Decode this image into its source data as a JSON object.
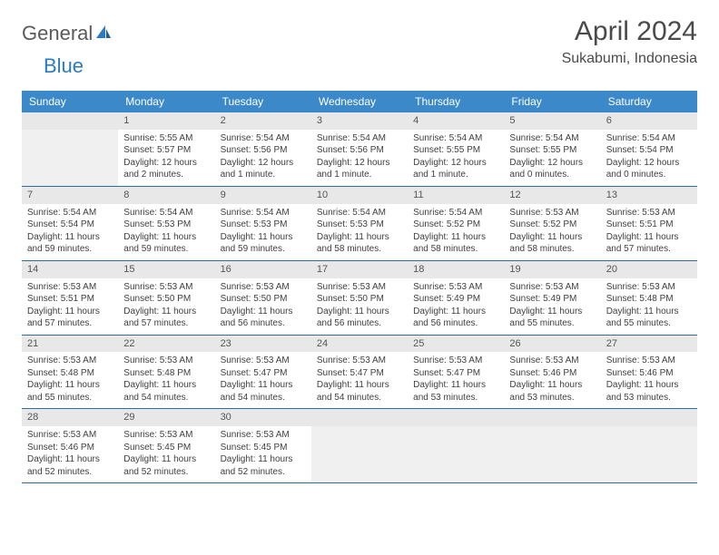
{
  "logo": {
    "general": "General",
    "blue": "Blue"
  },
  "title": "April 2024",
  "location": "Sukabumi, Indonesia",
  "colors": {
    "header_bg": "#3b89c9",
    "header_text": "#ffffff",
    "daynum_bg": "#e8e8e8",
    "daynum_text": "#555555",
    "cell_border": "#2e6da4",
    "empty_bg": "#f0f0f0",
    "body_text": "#404040",
    "logo_gray": "#5a5a5a",
    "logo_blue": "#2b7bbf"
  },
  "typography": {
    "title_fontsize": 30,
    "location_fontsize": 16,
    "dayheader_fontsize": 12,
    "daynum_fontsize": 11,
    "cell_fontsize": 10
  },
  "day_names": [
    "Sunday",
    "Monday",
    "Tuesday",
    "Wednesday",
    "Thursday",
    "Friday",
    "Saturday"
  ],
  "weeks": [
    [
      null,
      {
        "n": "1",
        "sr": "Sunrise: 5:55 AM",
        "ss": "Sunset: 5:57 PM",
        "dl": "Daylight: 12 hours and 2 minutes."
      },
      {
        "n": "2",
        "sr": "Sunrise: 5:54 AM",
        "ss": "Sunset: 5:56 PM",
        "dl": "Daylight: 12 hours and 1 minute."
      },
      {
        "n": "3",
        "sr": "Sunrise: 5:54 AM",
        "ss": "Sunset: 5:56 PM",
        "dl": "Daylight: 12 hours and 1 minute."
      },
      {
        "n": "4",
        "sr": "Sunrise: 5:54 AM",
        "ss": "Sunset: 5:55 PM",
        "dl": "Daylight: 12 hours and 1 minute."
      },
      {
        "n": "5",
        "sr": "Sunrise: 5:54 AM",
        "ss": "Sunset: 5:55 PM",
        "dl": "Daylight: 12 hours and 0 minutes."
      },
      {
        "n": "6",
        "sr": "Sunrise: 5:54 AM",
        "ss": "Sunset: 5:54 PM",
        "dl": "Daylight: 12 hours and 0 minutes."
      }
    ],
    [
      {
        "n": "7",
        "sr": "Sunrise: 5:54 AM",
        "ss": "Sunset: 5:54 PM",
        "dl": "Daylight: 11 hours and 59 minutes."
      },
      {
        "n": "8",
        "sr": "Sunrise: 5:54 AM",
        "ss": "Sunset: 5:53 PM",
        "dl": "Daylight: 11 hours and 59 minutes."
      },
      {
        "n": "9",
        "sr": "Sunrise: 5:54 AM",
        "ss": "Sunset: 5:53 PM",
        "dl": "Daylight: 11 hours and 59 minutes."
      },
      {
        "n": "10",
        "sr": "Sunrise: 5:54 AM",
        "ss": "Sunset: 5:53 PM",
        "dl": "Daylight: 11 hours and 58 minutes."
      },
      {
        "n": "11",
        "sr": "Sunrise: 5:54 AM",
        "ss": "Sunset: 5:52 PM",
        "dl": "Daylight: 11 hours and 58 minutes."
      },
      {
        "n": "12",
        "sr": "Sunrise: 5:53 AM",
        "ss": "Sunset: 5:52 PM",
        "dl": "Daylight: 11 hours and 58 minutes."
      },
      {
        "n": "13",
        "sr": "Sunrise: 5:53 AM",
        "ss": "Sunset: 5:51 PM",
        "dl": "Daylight: 11 hours and 57 minutes."
      }
    ],
    [
      {
        "n": "14",
        "sr": "Sunrise: 5:53 AM",
        "ss": "Sunset: 5:51 PM",
        "dl": "Daylight: 11 hours and 57 minutes."
      },
      {
        "n": "15",
        "sr": "Sunrise: 5:53 AM",
        "ss": "Sunset: 5:50 PM",
        "dl": "Daylight: 11 hours and 57 minutes."
      },
      {
        "n": "16",
        "sr": "Sunrise: 5:53 AM",
        "ss": "Sunset: 5:50 PM",
        "dl": "Daylight: 11 hours and 56 minutes."
      },
      {
        "n": "17",
        "sr": "Sunrise: 5:53 AM",
        "ss": "Sunset: 5:50 PM",
        "dl": "Daylight: 11 hours and 56 minutes."
      },
      {
        "n": "18",
        "sr": "Sunrise: 5:53 AM",
        "ss": "Sunset: 5:49 PM",
        "dl": "Daylight: 11 hours and 56 minutes."
      },
      {
        "n": "19",
        "sr": "Sunrise: 5:53 AM",
        "ss": "Sunset: 5:49 PM",
        "dl": "Daylight: 11 hours and 55 minutes."
      },
      {
        "n": "20",
        "sr": "Sunrise: 5:53 AM",
        "ss": "Sunset: 5:48 PM",
        "dl": "Daylight: 11 hours and 55 minutes."
      }
    ],
    [
      {
        "n": "21",
        "sr": "Sunrise: 5:53 AM",
        "ss": "Sunset: 5:48 PM",
        "dl": "Daylight: 11 hours and 55 minutes."
      },
      {
        "n": "22",
        "sr": "Sunrise: 5:53 AM",
        "ss": "Sunset: 5:48 PM",
        "dl": "Daylight: 11 hours and 54 minutes."
      },
      {
        "n": "23",
        "sr": "Sunrise: 5:53 AM",
        "ss": "Sunset: 5:47 PM",
        "dl": "Daylight: 11 hours and 54 minutes."
      },
      {
        "n": "24",
        "sr": "Sunrise: 5:53 AM",
        "ss": "Sunset: 5:47 PM",
        "dl": "Daylight: 11 hours and 54 minutes."
      },
      {
        "n": "25",
        "sr": "Sunrise: 5:53 AM",
        "ss": "Sunset: 5:47 PM",
        "dl": "Daylight: 11 hours and 53 minutes."
      },
      {
        "n": "26",
        "sr": "Sunrise: 5:53 AM",
        "ss": "Sunset: 5:46 PM",
        "dl": "Daylight: 11 hours and 53 minutes."
      },
      {
        "n": "27",
        "sr": "Sunrise: 5:53 AM",
        "ss": "Sunset: 5:46 PM",
        "dl": "Daylight: 11 hours and 53 minutes."
      }
    ],
    [
      {
        "n": "28",
        "sr": "Sunrise: 5:53 AM",
        "ss": "Sunset: 5:46 PM",
        "dl": "Daylight: 11 hours and 52 minutes."
      },
      {
        "n": "29",
        "sr": "Sunrise: 5:53 AM",
        "ss": "Sunset: 5:45 PM",
        "dl": "Daylight: 11 hours and 52 minutes."
      },
      {
        "n": "30",
        "sr": "Sunrise: 5:53 AM",
        "ss": "Sunset: 5:45 PM",
        "dl": "Daylight: 11 hours and 52 minutes."
      },
      null,
      null,
      null,
      null
    ]
  ]
}
